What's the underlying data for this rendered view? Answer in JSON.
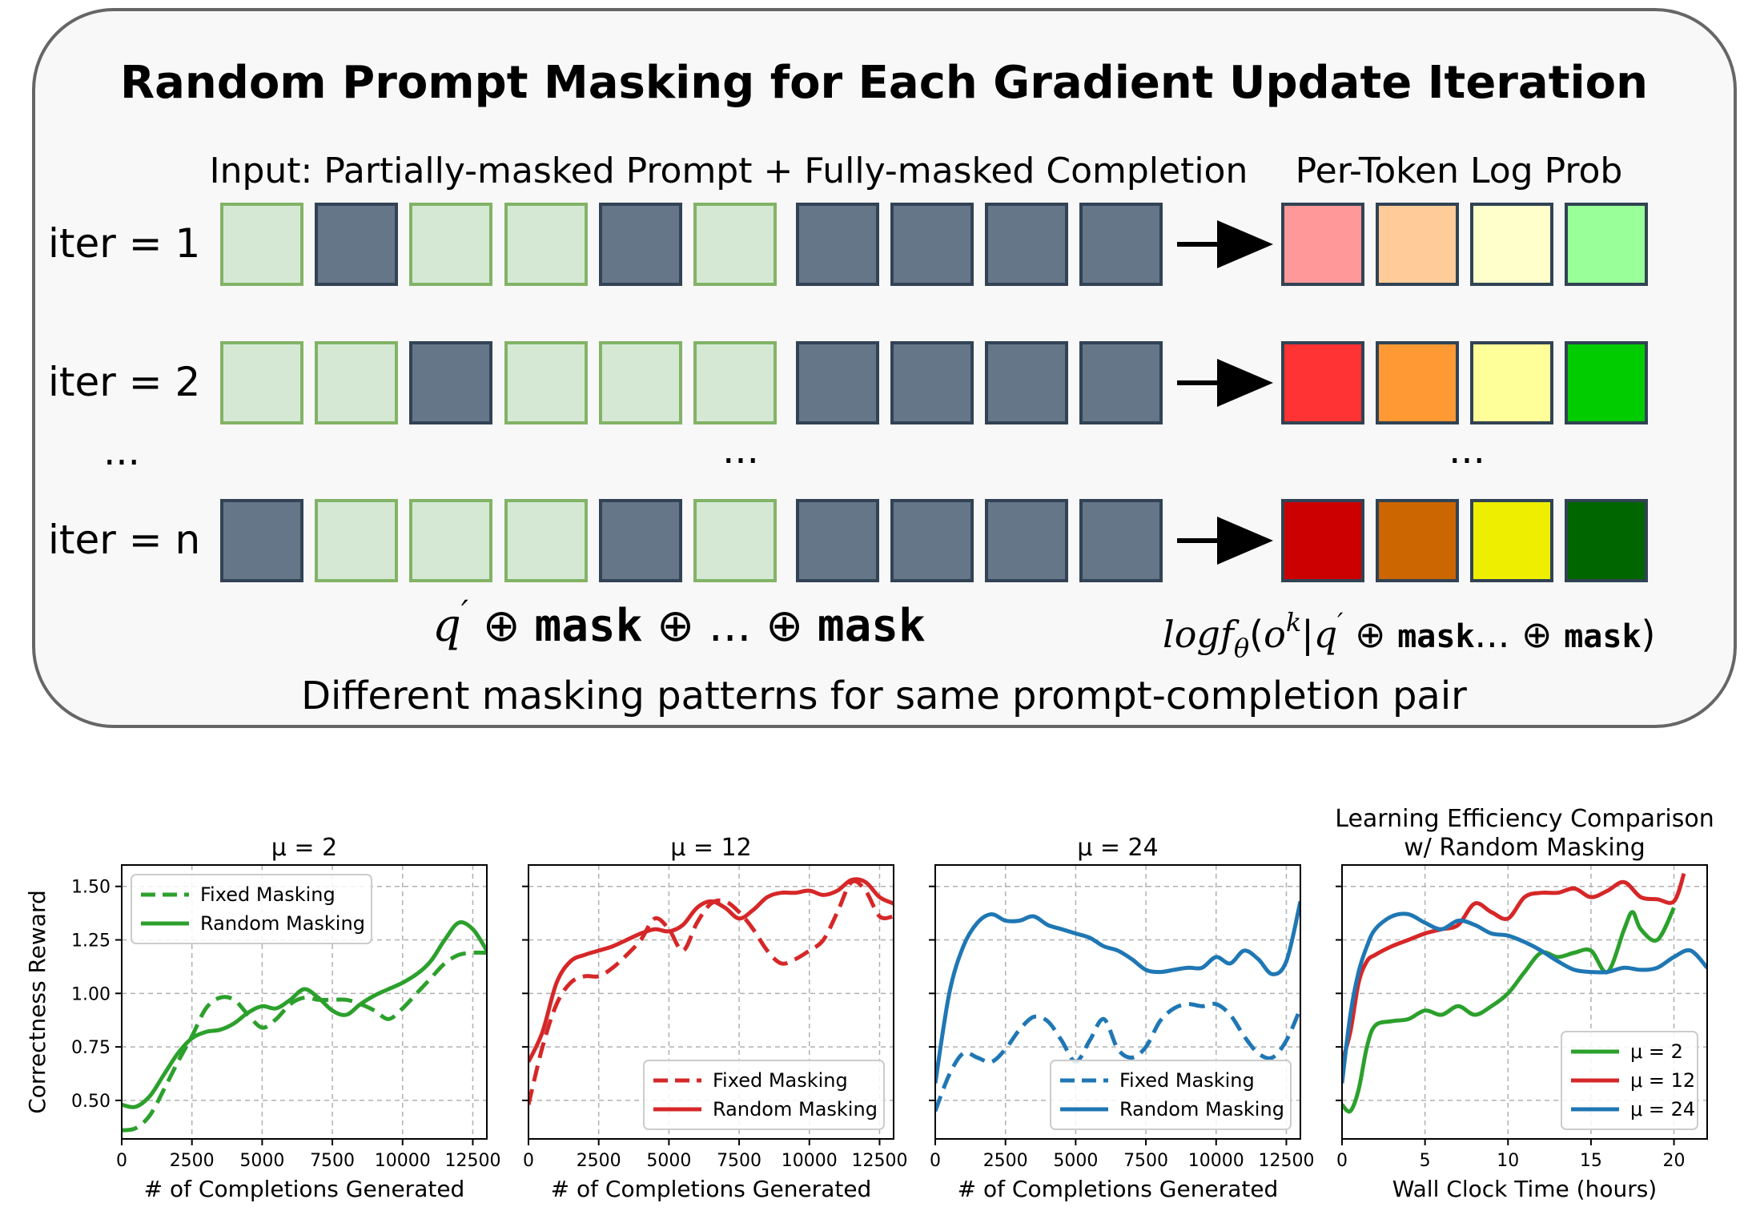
{
  "diagram": {
    "title": "Random Prompt Masking for Each Gradient Update Iteration",
    "input_label": "Input: Partially-masked Prompt + Fully-masked Completion",
    "output_label": "Per-Token Log Prob",
    "rows": [
      {
        "label": "iter = 1",
        "prompt_mask": [
          false,
          true,
          false,
          false,
          true,
          false
        ],
        "completion_mask": [
          true,
          true,
          true,
          true
        ],
        "output_colors": [
          "#ff9999",
          "#ffcc99",
          "#ffffcc",
          "#99ff99"
        ]
      },
      {
        "label": "iter = 2",
        "prompt_mask": [
          false,
          false,
          true,
          false,
          false,
          false
        ],
        "completion_mask": [
          true,
          true,
          true,
          true
        ],
        "output_colors": [
          "#ff3333",
          "#ff9933",
          "#ffff99",
          "#00cc00"
        ]
      },
      {
        "label": "iter = n",
        "prompt_mask": [
          true,
          false,
          false,
          false,
          true,
          false
        ],
        "completion_mask": [
          true,
          true,
          true,
          true
        ],
        "output_colors": [
          "#cc0000",
          "#cc6600",
          "#eeee00",
          "#006600"
        ]
      }
    ],
    "ellipsis": "...",
    "formula_left": {
      "q": "q",
      "prime": "′",
      "oplus": "⊕",
      "mask": "mask",
      "dots": "..."
    },
    "formula_right": {
      "log": "log",
      "f": "f",
      "theta": "θ",
      "o": "o",
      "k": "k",
      "q": "q",
      "prime": "′",
      "oplus": "⊕",
      "mask": "mask",
      "dots": "..."
    },
    "caption": "Different masking patterns for same prompt-completion pair",
    "colors": {
      "unmasked_fill": "#d5e8d4",
      "unmasked_stroke": "#82b366",
      "masked_fill": "#647687",
      "masked_stroke": "#314354",
      "panel_bg": "#f8f8f8",
      "panel_stroke": "#666666"
    }
  },
  "chart_data": [
    {
      "type": "line",
      "title": "μ = 2",
      "xlabel": "# of Completions Generated",
      "ylabel": "Correctness Reward",
      "xlim": [
        0,
        13000
      ],
      "ylim": [
        0.32,
        1.6
      ],
      "xticks": [
        0,
        2500,
        5000,
        7500,
        10000,
        12500
      ],
      "yticks": [
        0.5,
        0.75,
        1.0,
        1.25,
        1.5
      ],
      "ytick_labels": [
        "0.50",
        "0.75",
        "1.00",
        "1.25",
        "1.50"
      ],
      "legend_position": "upper-left",
      "grid": true,
      "series": [
        {
          "name": "Fixed Masking",
          "color": "#2ca02c",
          "dash": true,
          "x": [
            0,
            500,
            1000,
            1500,
            2000,
            2500,
            3000,
            3500,
            4000,
            4500,
            5000,
            5500,
            6000,
            6500,
            7000,
            7500,
            8000,
            8500,
            9000,
            9500,
            10000,
            10500,
            11000,
            11500,
            12000,
            12500,
            13000
          ],
          "y": [
            0.36,
            0.37,
            0.43,
            0.55,
            0.68,
            0.8,
            0.93,
            0.98,
            0.97,
            0.9,
            0.84,
            0.88,
            0.95,
            0.98,
            0.97,
            0.97,
            0.97,
            0.95,
            0.92,
            0.88,
            0.93,
            1.0,
            1.07,
            1.14,
            1.18,
            1.19,
            1.19
          ]
        },
        {
          "name": "Random Masking",
          "color": "#2ca02c",
          "dash": false,
          "x": [
            0,
            500,
            1000,
            1500,
            2000,
            2500,
            3000,
            3500,
            4000,
            4500,
            5000,
            5500,
            6000,
            6500,
            7000,
            7500,
            8000,
            8500,
            9000,
            9500,
            10000,
            10500,
            11000,
            11500,
            12000,
            12500,
            13000
          ],
          "y": [
            0.48,
            0.47,
            0.52,
            0.62,
            0.72,
            0.79,
            0.82,
            0.83,
            0.86,
            0.91,
            0.94,
            0.93,
            0.97,
            1.02,
            0.98,
            0.92,
            0.9,
            0.95,
            0.99,
            1.02,
            1.05,
            1.09,
            1.15,
            1.25,
            1.33,
            1.3,
            1.2
          ]
        }
      ]
    },
    {
      "type": "line",
      "title": "μ = 12",
      "xlabel": "# of Completions Generated",
      "xlim": [
        0,
        13000
      ],
      "ylim": [
        0.32,
        1.6
      ],
      "xticks": [
        0,
        2500,
        5000,
        7500,
        10000,
        12500
      ],
      "legend_position": "lower-right",
      "grid": true,
      "series": [
        {
          "name": "Fixed Masking",
          "color": "#d62728",
          "dash": true,
          "x": [
            0,
            500,
            1000,
            1500,
            2000,
            2500,
            3000,
            3500,
            4000,
            4500,
            5000,
            5500,
            6000,
            6500,
            7000,
            7500,
            8000,
            8500,
            9000,
            9500,
            10000,
            10500,
            11000,
            11500,
            12000,
            12500,
            13000
          ],
          "y": [
            0.48,
            0.75,
            0.95,
            1.05,
            1.08,
            1.08,
            1.12,
            1.18,
            1.25,
            1.35,
            1.3,
            1.2,
            1.33,
            1.42,
            1.43,
            1.38,
            1.3,
            1.2,
            1.14,
            1.16,
            1.2,
            1.25,
            1.38,
            1.52,
            1.48,
            1.36,
            1.36
          ]
        },
        {
          "name": "Random Masking",
          "color": "#d62728",
          "dash": false,
          "x": [
            0,
            500,
            1000,
            1500,
            2000,
            2500,
            3000,
            3500,
            4000,
            4500,
            5000,
            5500,
            6000,
            6500,
            7000,
            7500,
            8000,
            8500,
            9000,
            9500,
            10000,
            10500,
            11000,
            11500,
            12000,
            12500,
            13000
          ],
          "y": [
            0.68,
            0.82,
            1.05,
            1.15,
            1.18,
            1.2,
            1.22,
            1.25,
            1.28,
            1.3,
            1.29,
            1.32,
            1.4,
            1.43,
            1.4,
            1.35,
            1.39,
            1.45,
            1.47,
            1.47,
            1.48,
            1.46,
            1.48,
            1.53,
            1.52,
            1.45,
            1.42
          ]
        }
      ]
    },
    {
      "type": "line",
      "title": "μ = 24",
      "xlabel": "# of Completions Generated",
      "xlim": [
        0,
        13000
      ],
      "ylim": [
        0.32,
        1.6
      ],
      "xticks": [
        0,
        2500,
        5000,
        7500,
        10000,
        12500
      ],
      "legend_position": "lower-right",
      "grid": true,
      "series": [
        {
          "name": "Fixed Masking",
          "color": "#1f77b4",
          "dash": true,
          "x": [
            0,
            500,
            1000,
            1500,
            2000,
            2500,
            3000,
            3500,
            4000,
            4500,
            5000,
            5500,
            6000,
            6500,
            7000,
            7500,
            8000,
            8500,
            9000,
            9500,
            10000,
            10500,
            11000,
            11500,
            12000,
            12500,
            13000
          ],
          "y": [
            0.45,
            0.62,
            0.72,
            0.7,
            0.68,
            0.74,
            0.83,
            0.89,
            0.87,
            0.78,
            0.68,
            0.78,
            0.88,
            0.74,
            0.7,
            0.75,
            0.87,
            0.93,
            0.95,
            0.94,
            0.95,
            0.9,
            0.8,
            0.72,
            0.7,
            0.78,
            0.93
          ]
        },
        {
          "name": "Random Masking",
          "color": "#1f77b4",
          "dash": false,
          "x": [
            0,
            500,
            1000,
            1500,
            2000,
            2500,
            3000,
            3500,
            4000,
            4500,
            5000,
            5500,
            6000,
            6500,
            7000,
            7500,
            8000,
            8500,
            9000,
            9500,
            10000,
            10500,
            11000,
            11500,
            12000,
            12500,
            13000
          ],
          "y": [
            0.58,
            1.0,
            1.22,
            1.33,
            1.37,
            1.34,
            1.34,
            1.36,
            1.32,
            1.3,
            1.28,
            1.26,
            1.22,
            1.2,
            1.16,
            1.11,
            1.1,
            1.11,
            1.12,
            1.12,
            1.17,
            1.14,
            1.2,
            1.16,
            1.09,
            1.15,
            1.43
          ]
        }
      ]
    },
    {
      "type": "line",
      "title": "Learning Efficiency Comparison\nw/ Random Masking",
      "xlabel": "Wall Clock Time (hours)",
      "xlim": [
        0,
        22
      ],
      "ylim": [
        0.32,
        1.6
      ],
      "xticks": [
        0,
        5,
        10,
        15,
        20
      ],
      "legend_position": "lower-right",
      "grid": true,
      "series": [
        {
          "name": "μ = 2",
          "color": "#2ca02c",
          "dash": false,
          "x": [
            0,
            0.5,
            1,
            1.5,
            2,
            3,
            4,
            5,
            6,
            7,
            8,
            9,
            10,
            11,
            12,
            13,
            14,
            15,
            16,
            17,
            17.5,
            18,
            19,
            20
          ],
          "y": [
            0.48,
            0.45,
            0.55,
            0.75,
            0.85,
            0.87,
            0.88,
            0.92,
            0.9,
            0.94,
            0.9,
            0.94,
            1.0,
            1.1,
            1.19,
            1.17,
            1.19,
            1.2,
            1.1,
            1.3,
            1.38,
            1.3,
            1.25,
            1.4
          ]
        },
        {
          "name": "μ = 12",
          "color": "#d62728",
          "dash": false,
          "x": [
            0,
            0.5,
            1,
            1.5,
            2,
            3,
            4,
            5,
            6,
            7,
            8,
            9,
            10,
            11,
            12,
            13,
            14,
            15,
            16,
            17,
            18,
            19,
            20,
            20.6
          ],
          "y": [
            0.68,
            0.82,
            1.05,
            1.15,
            1.18,
            1.22,
            1.25,
            1.28,
            1.3,
            1.32,
            1.42,
            1.38,
            1.35,
            1.45,
            1.47,
            1.47,
            1.49,
            1.45,
            1.48,
            1.52,
            1.45,
            1.44,
            1.43,
            1.56
          ]
        },
        {
          "name": "μ = 24",
          "color": "#1f77b4",
          "dash": false,
          "x": [
            0,
            0.5,
            1,
            1.5,
            2,
            3,
            4,
            5,
            6,
            7,
            8,
            9,
            10,
            11,
            12,
            13,
            14,
            15,
            16,
            17,
            18,
            19,
            20,
            21,
            22
          ],
          "y": [
            0.58,
            0.9,
            1.1,
            1.22,
            1.3,
            1.36,
            1.37,
            1.33,
            1.3,
            1.34,
            1.32,
            1.28,
            1.27,
            1.24,
            1.2,
            1.15,
            1.11,
            1.1,
            1.1,
            1.12,
            1.11,
            1.12,
            1.17,
            1.2,
            1.12
          ]
        }
      ]
    }
  ]
}
